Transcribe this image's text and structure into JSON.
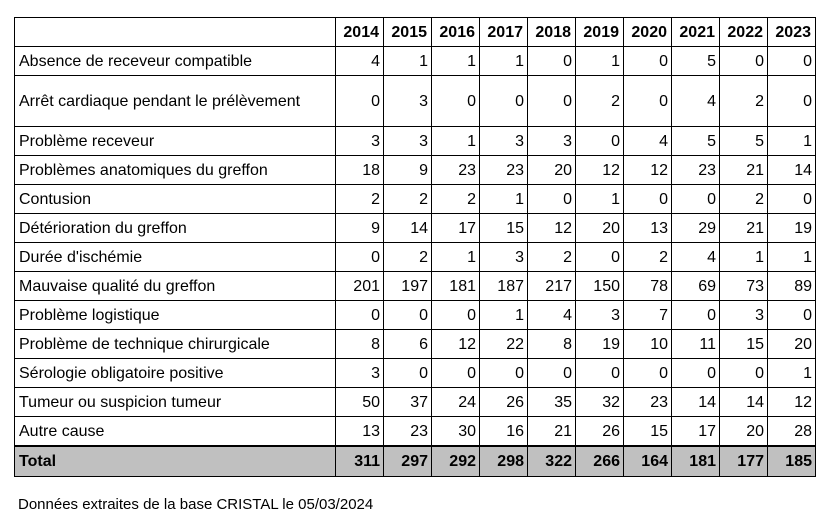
{
  "years": [
    "2014",
    "2015",
    "2016",
    "2017",
    "2018",
    "2019",
    "2020",
    "2021",
    "2022",
    "2023"
  ],
  "rows": [
    {
      "label": "Absence de receveur compatible",
      "values": [
        "4",
        "1",
        "1",
        "1",
        "0",
        "1",
        "0",
        "5",
        "0",
        "0"
      ]
    },
    {
      "label": "Arrêt cardiaque pendant le prélèvement",
      "values": [
        "0",
        "3",
        "0",
        "0",
        "0",
        "2",
        "0",
        "4",
        "2",
        "0"
      ]
    },
    {
      "label": "Problème receveur",
      "values": [
        "3",
        "3",
        "1",
        "3",
        "3",
        "0",
        "4",
        "5",
        "5",
        "1"
      ]
    },
    {
      "label": "Problèmes anatomiques du greffon",
      "values": [
        "18",
        "9",
        "23",
        "23",
        "20",
        "12",
        "12",
        "23",
        "21",
        "14"
      ]
    },
    {
      "label": "Contusion",
      "values": [
        "2",
        "2",
        "2",
        "1",
        "0",
        "1",
        "0",
        "0",
        "2",
        "0"
      ]
    },
    {
      "label": "Détérioration du greffon",
      "values": [
        "9",
        "14",
        "17",
        "15",
        "12",
        "20",
        "13",
        "29",
        "21",
        "19"
      ]
    },
    {
      "label": "Durée d'ischémie",
      "values": [
        "0",
        "2",
        "1",
        "3",
        "2",
        "0",
        "2",
        "4",
        "1",
        "1"
      ]
    },
    {
      "label": "Mauvaise qualité du greffon",
      "values": [
        "201",
        "197",
        "181",
        "187",
        "217",
        "150",
        "78",
        "69",
        "73",
        "89"
      ]
    },
    {
      "label": "Problème logistique",
      "values": [
        "0",
        "0",
        "0",
        "1",
        "4",
        "3",
        "7",
        "0",
        "3",
        "0"
      ]
    },
    {
      "label": "Problème de technique chirurgicale",
      "values": [
        "8",
        "6",
        "12",
        "22",
        "8",
        "19",
        "10",
        "11",
        "15",
        "20"
      ]
    },
    {
      "label": "Sérologie obligatoire positive",
      "values": [
        "3",
        "0",
        "0",
        "0",
        "0",
        "0",
        "0",
        "0",
        "0",
        "1"
      ]
    },
    {
      "label": "Tumeur ou suspicion tumeur",
      "values": [
        "50",
        "37",
        "24",
        "26",
        "35",
        "32",
        "23",
        "14",
        "14",
        "12"
      ]
    },
    {
      "label": "Autre cause",
      "values": [
        "13",
        "23",
        "30",
        "16",
        "21",
        "26",
        "15",
        "17",
        "20",
        "28"
      ]
    }
  ],
  "total": {
    "label": "Total",
    "values": [
      "311",
      "297",
      "292",
      "298",
      "322",
      "266",
      "164",
      "181",
      "177",
      "185"
    ]
  },
  "footnote": "Données extraites de la base CRISTAL le 05/03/2024"
}
